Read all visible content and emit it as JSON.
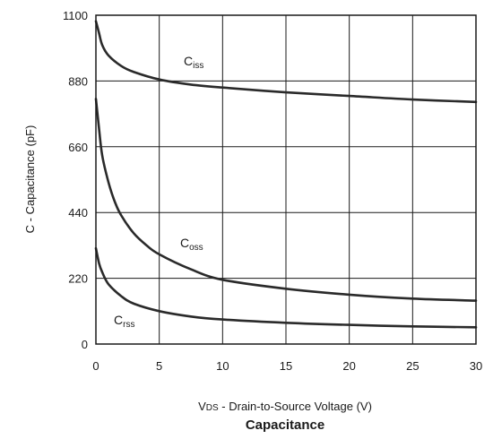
{
  "chart_data": {
    "type": "line",
    "title": "Capacitance",
    "xlabel_prefix": "V",
    "xlabel_sub": "DS",
    "xlabel_rest": " - Drain-to-Source Voltage (V)",
    "ylabel": "C - Capacitance (pF)",
    "xlim": [
      0,
      30
    ],
    "ylim": [
      0,
      1100
    ],
    "xticks": [
      "0",
      "5",
      "10",
      "15",
      "20",
      "25",
      "30"
    ],
    "yticks": [
      "0",
      "220",
      "440",
      "660",
      "880",
      "1100"
    ],
    "grid": true,
    "colors": {
      "line": "#2a2a2a",
      "grid": "#1a1a1a",
      "background": "#ffffff"
    },
    "series": [
      {
        "name": "C",
        "sub": "iss",
        "x": [
          0,
          0.25,
          0.5,
          1,
          2,
          3,
          5,
          7.5,
          10,
          15,
          20,
          25,
          30
        ],
        "y": [
          1080,
          1040,
          1000,
          965,
          930,
          910,
          885,
          868,
          858,
          842,
          830,
          818,
          810
        ]
      },
      {
        "name": "C",
        "sub": "oss",
        "x": [
          0,
          0.25,
          0.5,
          1,
          1.5,
          2,
          3,
          4,
          5,
          7.5,
          10,
          15,
          20,
          25,
          30
        ],
        "y": [
          820,
          720,
          630,
          540,
          475,
          430,
          370,
          330,
          300,
          250,
          215,
          185,
          165,
          152,
          145
        ]
      },
      {
        "name": "C",
        "sub": "rss",
        "x": [
          0,
          0.25,
          0.5,
          1,
          2,
          3,
          5,
          7.5,
          10,
          15,
          20,
          25,
          30
        ],
        "y": [
          320,
          270,
          240,
          200,
          160,
          135,
          110,
          92,
          82,
          71,
          64,
          59,
          56
        ]
      }
    ]
  }
}
